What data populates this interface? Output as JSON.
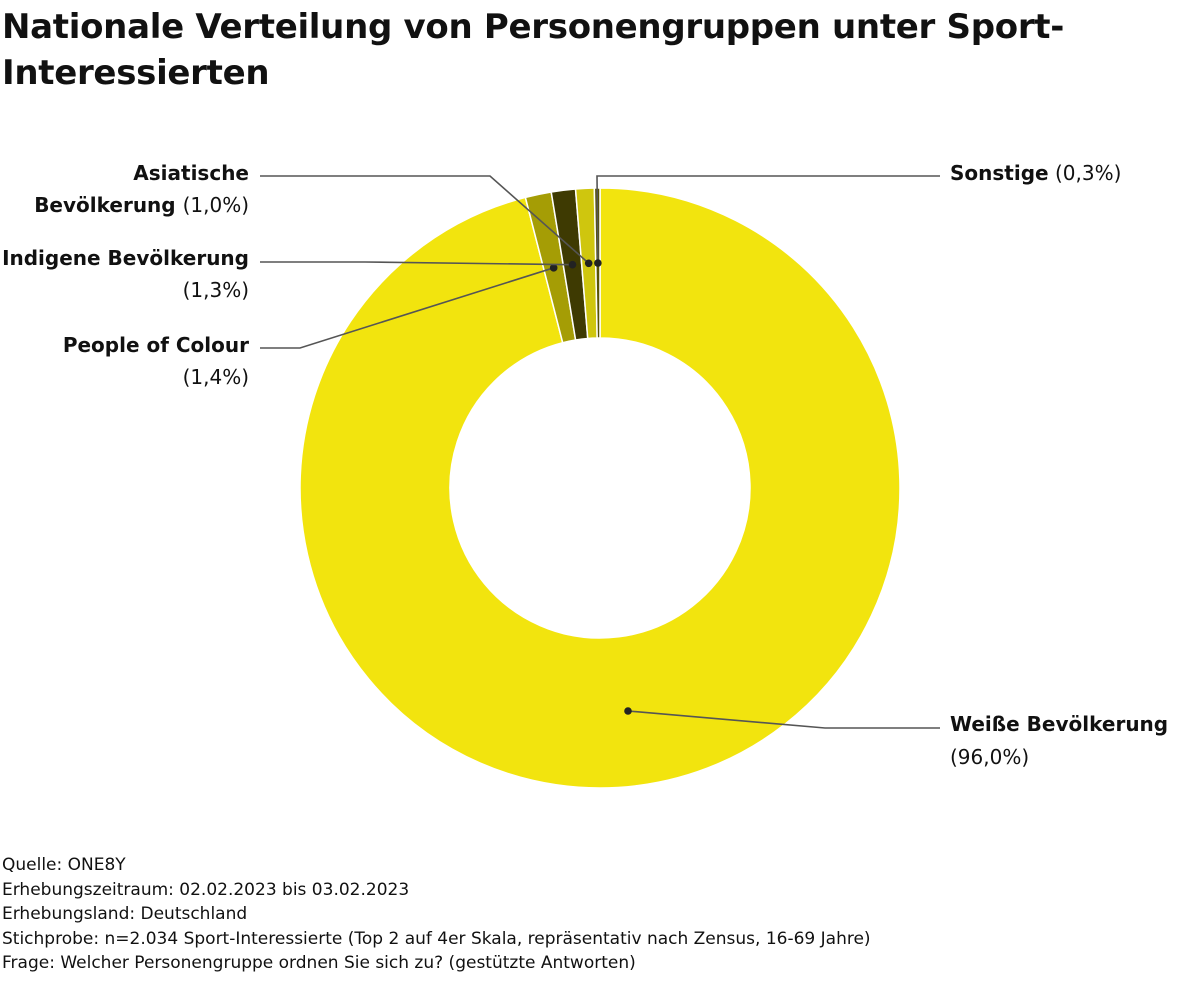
{
  "chart_data": {
    "type": "pie",
    "variant": "donut",
    "title": "Nationale Verteilung von Personengruppen unter Sport-Interessierten",
    "unit": "%",
    "slices": [
      {
        "label": "Weiße Bevölkerung",
        "value": 96.0,
        "value_label": "(96,0%)",
        "color": "#F2E40E"
      },
      {
        "label": "People of Colour",
        "value": 1.4,
        "value_label": "(1,4%)",
        "color": "#A59D05"
      },
      {
        "label": "Indigene Bevölkerung",
        "value": 1.3,
        "value_label": "(1,3%)",
        "color": "#3E3A02"
      },
      {
        "label": "Asiatische Bevölkerung",
        "value": 1.0,
        "value_label": "(1,0%)",
        "color": "#CFC60E"
      },
      {
        "label": "Sonstige",
        "value": 0.3,
        "value_label": "(0,3%)",
        "color": "#585304"
      }
    ]
  },
  "footer": {
    "source": "Quelle: ONE8Y",
    "period": "Erhebungszeitraum: 02.02.2023 bis 03.02.2023",
    "country": "Erhebungsland: Deutschland",
    "sample": "Stichprobe: n=2.034 Sport-Interessierte (Top 2 auf 4er Skala, repräsentativ nach Zensus, 16-69 Jahre)",
    "question": "Frage: Welcher Personengruppe ordnen Sie sich zu? (gestützte Antworten)"
  }
}
